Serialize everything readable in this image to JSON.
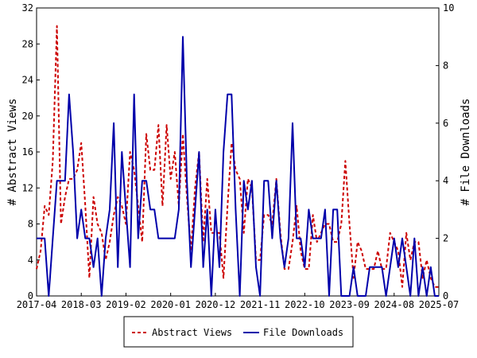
{
  "chart_data": {
    "type": "line",
    "title": "",
    "xlabel": "",
    "ylabel": "# Abstract Views",
    "y2label": "# File Downloads",
    "ylim": [
      0,
      32
    ],
    "y2lim": [
      0,
      10
    ],
    "yticks": [
      0,
      4,
      8,
      12,
      16,
      20,
      24,
      28,
      32
    ],
    "y2ticks": [
      0,
      2,
      4,
      6,
      8,
      10
    ],
    "xlim": [
      "2017-04",
      "2025-07"
    ],
    "xticks": [
      "2017-04",
      "2018-03",
      "2019-02",
      "2020-01",
      "2020-12",
      "2021-11",
      "2022-10",
      "2023-09",
      "2024-08",
      "2025-07"
    ],
    "legend_position": "bottom",
    "grid": false,
    "series": [
      {
        "name": "Abstract Views",
        "axis": "left",
        "color": "#cc0000",
        "style": "dashed",
        "x": [
          "2017-04",
          "2017-05",
          "2017-06",
          "2017-07",
          "2017-08",
          "2017-09",
          "2017-10",
          "2017-11",
          "2017-12",
          "2018-01",
          "2018-02",
          "2018-03",
          "2018-04",
          "2018-05",
          "2018-06",
          "2018-07",
          "2018-08",
          "2018-09",
          "2018-10",
          "2018-11",
          "2018-12",
          "2019-01",
          "2019-02",
          "2019-03",
          "2019-04",
          "2019-05",
          "2019-06",
          "2019-07",
          "2019-08",
          "2019-09",
          "2019-10",
          "2019-11",
          "2019-12",
          "2020-01",
          "2020-02",
          "2020-03",
          "2020-04",
          "2020-05",
          "2020-06",
          "2020-07",
          "2020-08",
          "2020-09",
          "2020-10",
          "2020-11",
          "2020-12",
          "2021-01",
          "2021-02",
          "2021-03",
          "2021-04",
          "2021-05",
          "2021-06",
          "2021-07",
          "2021-08",
          "2021-09",
          "2021-10",
          "2021-11",
          "2021-12",
          "2022-01",
          "2022-02",
          "2022-03",
          "2022-04",
          "2022-05",
          "2022-06",
          "2022-07",
          "2022-08",
          "2022-09",
          "2022-10",
          "2022-11",
          "2022-12",
          "2023-01",
          "2023-02",
          "2023-03",
          "2023-04",
          "2023-05",
          "2023-06",
          "2023-07",
          "2023-08",
          "2023-09",
          "2023-10",
          "2023-11",
          "2023-12",
          "2024-01",
          "2024-02",
          "2024-03",
          "2024-04",
          "2024-05",
          "2024-06",
          "2024-07",
          "2024-08",
          "2024-09",
          "2024-10",
          "2024-11",
          "2024-12",
          "2025-01",
          "2025-02",
          "2025-03",
          "2025-04",
          "2025-05",
          "2025-06",
          "2025-07"
        ],
        "values": [
          3,
          5,
          10,
          9,
          15,
          30,
          8,
          11,
          13,
          13,
          14,
          17,
          10,
          2,
          11,
          8,
          7,
          4,
          6,
          9,
          11,
          10,
          8,
          16,
          14,
          10,
          6,
          18,
          14,
          14,
          19,
          10,
          19,
          13,
          16,
          10,
          18,
          11,
          5,
          12,
          16,
          6,
          13,
          7,
          7,
          7,
          2,
          10,
          17,
          14,
          13,
          7,
          13,
          12,
          4,
          4,
          9,
          9,
          8,
          13,
          7,
          3,
          3,
          6,
          10,
          5,
          3,
          3,
          9,
          6,
          7,
          8,
          8,
          6,
          6,
          8,
          15,
          8,
          2,
          6,
          5,
          3,
          3,
          3,
          5,
          3,
          3,
          7,
          6,
          5,
          1,
          7,
          4,
          6,
          6,
          2,
          4,
          2,
          1,
          1
        ]
      },
      {
        "name": "File Downloads",
        "axis": "right",
        "color": "#0000aa",
        "style": "solid",
        "x": [
          "2017-04",
          "2017-05",
          "2017-06",
          "2017-07",
          "2017-08",
          "2017-09",
          "2017-10",
          "2017-11",
          "2017-12",
          "2018-01",
          "2018-02",
          "2018-03",
          "2018-04",
          "2018-05",
          "2018-06",
          "2018-07",
          "2018-08",
          "2018-09",
          "2018-10",
          "2018-11",
          "2018-12",
          "2019-01",
          "2019-02",
          "2019-03",
          "2019-04",
          "2019-05",
          "2019-06",
          "2019-07",
          "2019-08",
          "2019-09",
          "2019-10",
          "2019-11",
          "2019-12",
          "2020-01",
          "2020-02",
          "2020-03",
          "2020-04",
          "2020-05",
          "2020-06",
          "2020-07",
          "2020-08",
          "2020-09",
          "2020-10",
          "2020-11",
          "2020-12",
          "2021-01",
          "2021-02",
          "2021-03",
          "2021-04",
          "2021-05",
          "2021-06",
          "2021-07",
          "2021-08",
          "2021-09",
          "2021-10",
          "2021-11",
          "2021-12",
          "2022-01",
          "2022-02",
          "2022-03",
          "2022-04",
          "2022-05",
          "2022-06",
          "2022-07",
          "2022-08",
          "2022-09",
          "2022-10",
          "2022-11",
          "2022-12",
          "2023-01",
          "2023-02",
          "2023-03",
          "2023-04",
          "2023-05",
          "2023-06",
          "2023-07",
          "2023-08",
          "2023-09",
          "2023-10",
          "2023-11",
          "2023-12",
          "2024-01",
          "2024-02",
          "2024-03",
          "2024-04",
          "2024-05",
          "2024-06",
          "2024-07",
          "2024-08",
          "2024-09",
          "2024-10",
          "2024-11",
          "2024-12",
          "2025-01",
          "2025-02",
          "2025-03",
          "2025-04",
          "2025-05",
          "2025-06",
          "2025-07"
        ],
        "values": [
          2,
          2,
          2,
          0,
          2,
          4,
          4,
          4,
          7,
          5,
          2,
          3,
          2,
          2,
          1,
          2,
          0,
          2,
          3,
          6,
          1,
          5,
          3,
          1,
          7,
          2,
          4,
          4,
          3,
          3,
          2,
          2,
          2,
          2,
          2,
          3,
          9,
          4,
          1,
          3,
          5,
          1,
          3,
          0,
          3,
          1,
          5,
          7,
          7,
          3,
          0,
          4,
          3,
          4,
          1,
          0,
          4,
          4,
          2,
          4,
          2,
          1,
          2,
          6,
          2,
          2,
          1,
          3,
          2,
          2,
          2,
          3,
          0,
          3,
          3,
          0,
          0,
          0,
          1,
          0,
          0,
          0,
          1,
          1,
          1,
          1,
          0,
          1,
          2,
          1,
          2,
          1,
          0,
          2,
          0,
          1,
          0,
          1,
          0,
          0
        ]
      }
    ]
  }
}
